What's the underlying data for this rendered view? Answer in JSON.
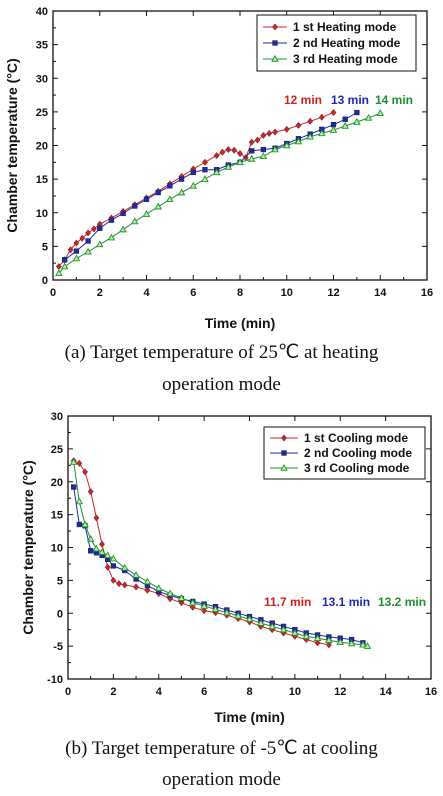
{
  "chart_data": [
    {
      "type": "line",
      "xlabel": "Time (min)",
      "ylabel": "Chamber temperature (°C)",
      "xlim": [
        0,
        16
      ],
      "ylim": [
        0,
        40
      ],
      "xticks": [
        "0",
        "2",
        "4",
        "6",
        "8",
        "10",
        "12",
        "14",
        "16"
      ],
      "yticks": [
        "0",
        "5",
        "10",
        "15",
        "20",
        "25",
        "30",
        "35",
        "40"
      ],
      "legend_position": "top-right",
      "series": [
        {
          "name": "1 st Heating mode",
          "color": "#d62020",
          "marker": "diamond",
          "x": [
            0.25,
            0.5,
            0.75,
            1,
            1.25,
            1.5,
            1.75,
            2,
            2.5,
            3,
            3.5,
            4,
            4.5,
            5,
            5.5,
            6,
            6.5,
            7,
            7.25,
            7.5,
            7.75,
            8,
            8.25,
            8.5,
            8.75,
            9,
            9.25,
            9.5,
            10,
            10.5,
            11,
            11.5,
            12
          ],
          "y": [
            2.0,
            3.0,
            4.5,
            5.5,
            6.2,
            7.0,
            7.6,
            8.3,
            9.2,
            10.2,
            11.2,
            12.2,
            13.2,
            14.3,
            15.4,
            16.5,
            17.5,
            18.5,
            19.0,
            19.4,
            19.3,
            18.8,
            18.2,
            20.5,
            20.8,
            21.5,
            21.8,
            22.0,
            22.4,
            23.0,
            23.6,
            24.2,
            24.9
          ]
        },
        {
          "name": "2 nd Heating mode",
          "color": "#1c28b4",
          "marker": "square",
          "x": [
            0.5,
            1,
            1.5,
            2,
            2.5,
            3,
            3.5,
            4,
            4.5,
            5,
            5.5,
            6,
            6.5,
            7,
            7.5,
            8,
            8.5,
            9,
            9.5,
            10,
            10.5,
            11,
            11.5,
            12,
            12.5,
            13
          ],
          "y": [
            3.0,
            4.3,
            5.8,
            7.7,
            8.9,
            9.9,
            11.0,
            12.0,
            13.0,
            14.0,
            15.0,
            16.0,
            16.4,
            16.4,
            17.1,
            17.5,
            19.2,
            19.4,
            19.6,
            20.3,
            21.0,
            21.7,
            22.4,
            23.1,
            23.9,
            24.9
          ]
        },
        {
          "name": "3 rd Heating mode",
          "color": "#1f8f2e",
          "marker": "triangle",
          "x": [
            0.25,
            0.5,
            1,
            1.5,
            2,
            2.5,
            3,
            3.5,
            4,
            4.5,
            5,
            5.5,
            6,
            6.5,
            7,
            7.5,
            8,
            8.5,
            9,
            9.5,
            10,
            10.5,
            11,
            11.5,
            12,
            12.5,
            13,
            13.5,
            14
          ],
          "y": [
            1.0,
            2.0,
            3.2,
            4.2,
            5.3,
            6.3,
            7.5,
            8.7,
            9.8,
            10.9,
            12.0,
            13.0,
            14.0,
            15.0,
            16.0,
            16.8,
            17.5,
            18.0,
            18.4,
            19.4,
            20.0,
            20.6,
            21.3,
            21.8,
            22.3,
            22.9,
            23.5,
            24.1,
            24.8
          ]
        }
      ],
      "annotations": [
        {
          "text": "12 min",
          "color": "#d62020",
          "x": 12,
          "y": 25
        },
        {
          "text": "13 min",
          "color": "#1c28b4",
          "x": 13,
          "y": 25
        },
        {
          "text": "14 min",
          "color": "#1f8f2e",
          "x": 14,
          "y": 25
        }
      ],
      "caption": [
        "(a) Target temperature of 25℃ at heating",
        "operation mode"
      ]
    },
    {
      "type": "line",
      "xlabel": "Time (min)",
      "ylabel": "Chamber temperature (°C)",
      "xlim": [
        0,
        16
      ],
      "ylim": [
        -10,
        30
      ],
      "xticks": [
        "0",
        "2",
        "4",
        "6",
        "8",
        "10",
        "12",
        "14",
        "16"
      ],
      "yticks": [
        "-10",
        "-5",
        "0",
        "5",
        "10",
        "15",
        "20",
        "25",
        "30"
      ],
      "legend_position": "top-right",
      "series": [
        {
          "name": "1 st Cooling mode",
          "color": "#d62020",
          "marker": "diamond",
          "x": [
            0.25,
            0.5,
            0.75,
            1,
            1.25,
            1.5,
            1.75,
            2,
            2.25,
            2.5,
            3,
            3.5,
            4,
            4.5,
            5,
            5.5,
            6,
            6.5,
            7,
            7.5,
            8,
            8.5,
            9,
            9.5,
            10,
            10.5,
            11,
            11.5
          ],
          "y": [
            23.2,
            22.8,
            21.5,
            18.5,
            14.5,
            10.5,
            7.0,
            5.0,
            4.5,
            4.3,
            4.0,
            3.5,
            3.0,
            2.2,
            1.6,
            0.9,
            0.4,
            0.1,
            -0.3,
            -0.8,
            -1.3,
            -2.0,
            -2.5,
            -3.0,
            -3.5,
            -4.0,
            -4.5,
            -4.8
          ]
        },
        {
          "name": "2 nd Cooling mode",
          "color": "#1c28b4",
          "marker": "square",
          "x": [
            0.25,
            0.5,
            0.75,
            1,
            1.25,
            1.5,
            1.75,
            2,
            2.5,
            3,
            3.5,
            4,
            4.5,
            5,
            5.5,
            6,
            6.5,
            7,
            7.5,
            8,
            8.5,
            9,
            9.5,
            10,
            10.5,
            11,
            11.5,
            12,
            12.5,
            13
          ],
          "y": [
            19.2,
            13.5,
            13.3,
            9.5,
            9.2,
            8.8,
            8.2,
            7.2,
            6.5,
            5.2,
            4.2,
            3.3,
            2.7,
            2.2,
            1.8,
            1.4,
            1.0,
            0.5,
            0.0,
            -0.5,
            -1.0,
            -1.5,
            -2.0,
            -2.5,
            -3.0,
            -3.3,
            -3.6,
            -3.8,
            -4.0,
            -4.5
          ]
        },
        {
          "name": "3 rd Cooling mode",
          "color": "#1f8f2e",
          "marker": "triangle",
          "x": [
            0.25,
            0.5,
            0.75,
            1,
            1.25,
            1.5,
            1.75,
            2,
            2.5,
            3,
            3.5,
            4,
            4.5,
            5,
            5.5,
            6,
            6.5,
            7,
            7.5,
            8,
            8.5,
            9,
            9.5,
            10,
            10.5,
            11,
            11.5,
            12,
            12.5,
            13,
            13.2
          ],
          "y": [
            23.0,
            17.0,
            13.5,
            11.3,
            9.8,
            9.3,
            8.8,
            8.3,
            6.9,
            5.8,
            4.8,
            3.8,
            3.0,
            2.3,
            1.6,
            1.1,
            0.6,
            0.1,
            -0.4,
            -0.9,
            -1.5,
            -2.0,
            -2.5,
            -3.0,
            -3.5,
            -3.8,
            -4.1,
            -4.4,
            -4.6,
            -4.8,
            -5.0
          ]
        }
      ],
      "annotations": [
        {
          "text": "11.7 min",
          "color": "#d62020",
          "x": 11.7,
          "y": -5
        },
        {
          "text": "13.1 min",
          "color": "#1c28b4",
          "x": 13.1,
          "y": -5
        },
        {
          "text": "13.2 min",
          "color": "#1f8f2e",
          "x": 13.2,
          "y": -5
        }
      ],
      "caption": [
        "(b) Target temperature of -5℃ at cooling",
        "operation mode"
      ]
    }
  ]
}
